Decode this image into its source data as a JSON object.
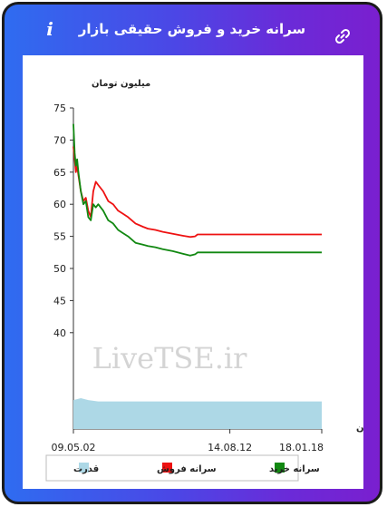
{
  "header": {
    "title": "سرانه خرید و فروش حقیقی بازار",
    "info_icon": "info-icon",
    "link_icon": "link-icon"
  },
  "watermark": "LiveTSE.ir",
  "colors": {
    "sell": "#ee1111",
    "buy": "#118811",
    "power": "#add8e6",
    "gradient_start": "#2f6cf0",
    "gradient_end": "#7a1fcf"
  },
  "chart_data": {
    "type": "line",
    "ylabel": "میلیون تومان",
    "xlabel": "زمان",
    "ylim": [
      25,
      75
    ],
    "yticks": [
      40,
      45,
      50,
      55,
      60,
      65,
      70,
      75
    ],
    "x_tick_labels": [
      "09.05.02",
      "14.08.12",
      "18.01.18"
    ],
    "x_tick_positions": [
      0,
      0.63,
      1
    ],
    "legend": {
      "placement": "bottom",
      "entries": [
        {
          "name": "سرانه خرید",
          "color": "#118811"
        },
        {
          "name": "سرانه فروش",
          "color": "#ee1111"
        },
        {
          "name": "قدرت",
          "color": "#add8e6"
        }
      ]
    },
    "series": [
      {
        "name": "سرانه فروش",
        "color": "#ee1111",
        "points": [
          [
            0,
            69
          ],
          [
            0.005,
            67
          ],
          [
            0.01,
            65
          ],
          [
            0.015,
            66
          ],
          [
            0.02,
            64.5
          ],
          [
            0.03,
            62
          ],
          [
            0.04,
            60.5
          ],
          [
            0.05,
            61
          ],
          [
            0.06,
            59
          ],
          [
            0.07,
            58
          ],
          [
            0.075,
            60
          ],
          [
            0.08,
            62
          ],
          [
            0.09,
            63.5
          ],
          [
            0.1,
            63
          ],
          [
            0.12,
            62
          ],
          [
            0.14,
            60.5
          ],
          [
            0.16,
            60
          ],
          [
            0.18,
            59
          ],
          [
            0.2,
            58.5
          ],
          [
            0.22,
            58
          ],
          [
            0.25,
            57
          ],
          [
            0.28,
            56.5
          ],
          [
            0.3,
            56.2
          ],
          [
            0.33,
            56
          ],
          [
            0.36,
            55.7
          ],
          [
            0.4,
            55.4
          ],
          [
            0.44,
            55.1
          ],
          [
            0.47,
            54.9
          ],
          [
            0.49,
            55
          ],
          [
            0.5,
            55.3
          ],
          [
            0.55,
            55.3
          ],
          [
            0.6,
            55.3
          ],
          [
            0.7,
            55.3
          ],
          [
            0.8,
            55.3
          ],
          [
            0.9,
            55.3
          ],
          [
            1,
            55.3
          ]
        ]
      },
      {
        "name": "سرانه خرید",
        "color": "#118811",
        "points": [
          [
            0,
            72.5
          ],
          [
            0.005,
            68
          ],
          [
            0.01,
            66
          ],
          [
            0.015,
            67
          ],
          [
            0.02,
            65
          ],
          [
            0.03,
            62
          ],
          [
            0.04,
            60
          ],
          [
            0.05,
            60.5
          ],
          [
            0.06,
            58
          ],
          [
            0.07,
            57.5
          ],
          [
            0.08,
            60
          ],
          [
            0.09,
            59.5
          ],
          [
            0.1,
            60
          ],
          [
            0.12,
            59
          ],
          [
            0.14,
            57.5
          ],
          [
            0.16,
            57
          ],
          [
            0.18,
            56
          ],
          [
            0.2,
            55.5
          ],
          [
            0.22,
            55
          ],
          [
            0.25,
            54
          ],
          [
            0.28,
            53.7
          ],
          [
            0.3,
            53.5
          ],
          [
            0.33,
            53.3
          ],
          [
            0.36,
            53
          ],
          [
            0.4,
            52.7
          ],
          [
            0.44,
            52.3
          ],
          [
            0.47,
            52
          ],
          [
            0.49,
            52.2
          ],
          [
            0.5,
            52.5
          ],
          [
            0.55,
            52.5
          ],
          [
            0.6,
            52.5
          ],
          [
            0.7,
            52.5
          ],
          [
            0.8,
            52.5
          ],
          [
            0.9,
            52.5
          ],
          [
            1,
            52.5
          ]
        ]
      },
      {
        "name": "قدرت",
        "color": "#add8e6",
        "points": [
          [
            0,
            29.5
          ],
          [
            0.03,
            29.8
          ],
          [
            0.06,
            29.5
          ],
          [
            0.1,
            29.3
          ],
          [
            0.2,
            29.3
          ],
          [
            0.4,
            29.3
          ],
          [
            0.6,
            29.3
          ],
          [
            0.8,
            29.3
          ],
          [
            1,
            29.3
          ]
        ]
      }
    ]
  }
}
